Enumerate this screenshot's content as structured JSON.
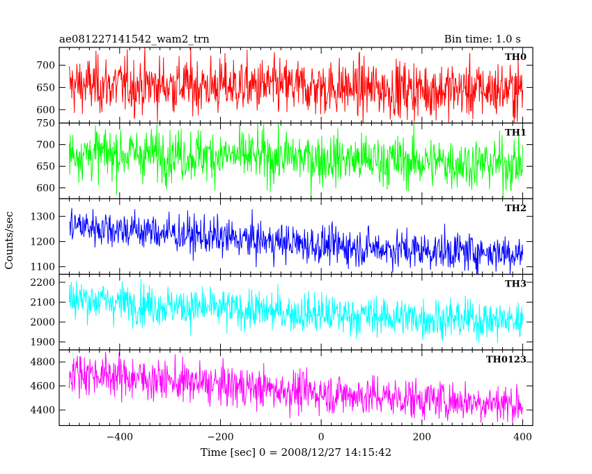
{
  "header": {
    "title": "ae081227141542_wam2_trn",
    "bin_time": "Bin time: 1.0 s"
  },
  "chart_data": {
    "type": "line",
    "title": "ae081227141542_wam2_trn",
    "subtitle": "Bin time: 1.0 s",
    "xlabel": "Time [sec] 0 = 2008/12/27 14:15:42",
    "ylabel": "Counts/sec",
    "xlim": [
      -520,
      420
    ],
    "x_range": [
      -500,
      400
    ],
    "x_ticks": [
      -400,
      -200,
      0,
      200,
      400
    ],
    "x_tick_labels": [
      "−400",
      "−200",
      "0",
      "200",
      "400"
    ],
    "grid": false,
    "legend": "none",
    "panels": [
      {
        "name": "TH0",
        "color": "#ff0000",
        "ylim": [
          570,
          740
        ],
        "yticks": [
          600,
          650,
          700
        ],
        "ytick_labels": [
          "600",
          "650",
          "700"
        ],
        "trend": [
          [
            -500,
            655
          ],
          [
            -300,
            655
          ],
          [
            0,
            650
          ],
          [
            200,
            645
          ],
          [
            400,
            645
          ]
        ],
        "noise_sd": 32
      },
      {
        "name": "TH1",
        "color": "#00ff00",
        "ylim": [
          575,
          750
        ],
        "yticks": [
          600,
          650,
          700,
          750
        ],
        "ytick_labels": [
          "600",
          "650",
          "700",
          "750"
        ],
        "trend": [
          [
            -500,
            680
          ],
          [
            -300,
            678
          ],
          [
            0,
            668
          ],
          [
            200,
            660
          ],
          [
            400,
            655
          ]
        ],
        "noise_sd": 30
      },
      {
        "name": "TH2",
        "color": "#0000ff",
        "ylim": [
          1070,
          1370
        ],
        "yticks": [
          1100,
          1200,
          1300
        ],
        "ytick_labels": [
          "1100",
          "1200",
          "1300"
        ],
        "trend": [
          [
            -500,
            1265
          ],
          [
            -400,
            1250
          ],
          [
            -200,
            1215
          ],
          [
            0,
            1185
          ],
          [
            200,
            1165
          ],
          [
            400,
            1155
          ]
        ],
        "noise_sd": 38
      },
      {
        "name": "TH3",
        "color": "#00ffff",
        "ylim": [
          1860,
          2240
        ],
        "yticks": [
          1900,
          2000,
          2100,
          2200
        ],
        "ytick_labels": [
          "1900",
          "2000",
          "2100",
          "2200"
        ],
        "trend": [
          [
            -500,
            2120
          ],
          [
            -300,
            2080
          ],
          [
            0,
            2040
          ],
          [
            200,
            2020
          ],
          [
            400,
            2005
          ]
        ],
        "noise_sd": 50
      },
      {
        "name": "TH0123",
        "color": "#ff00ff",
        "ylim": [
          4270,
          4900
        ],
        "yticks": [
          4400,
          4600,
          4800
        ],
        "ytick_labels": [
          "4400",
          "4600",
          "4800"
        ],
        "trend": [
          [
            -500,
            4720
          ],
          [
            -300,
            4640
          ],
          [
            0,
            4540
          ],
          [
            200,
            4490
          ],
          [
            400,
            4450
          ]
        ],
        "noise_sd": 85
      }
    ]
  }
}
